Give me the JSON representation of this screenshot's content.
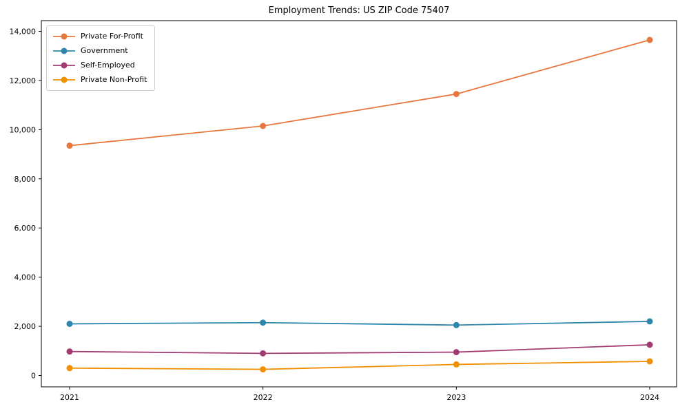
{
  "figure": {
    "background": "#ffffff",
    "border_color": "#000000",
    "legend_border_color": "#cccccc"
  },
  "chart_data": {
    "type": "line",
    "title": "Employment Trends: US ZIP Code 75407",
    "xlabel": "",
    "ylabel": "",
    "x_labels": [
      "2021",
      "2022",
      "2023",
      "2024"
    ],
    "series": [
      {
        "name": "Private For-Profit",
        "color": "#e8773e",
        "values": [
          9350,
          10150,
          11450,
          13650
        ]
      },
      {
        "name": "Government",
        "color": "#2e86ab",
        "values": [
          2100,
          2150,
          2050,
          2200
        ]
      },
      {
        "name": "Self-Employed",
        "color": "#a23b72",
        "values": [
          975,
          900,
          950,
          1250
        ]
      },
      {
        "name": "Private Non-Profit",
        "color": "#f18f01",
        "values": [
          300,
          250,
          450,
          575
        ]
      }
    ],
    "ylim": [
      0,
      14000
    ],
    "y_tick_values": [
      0,
      2000,
      4000,
      6000,
      8000,
      10000,
      12000,
      14000
    ],
    "y_tick_labels": [
      "0",
      "2,000",
      "4,000",
      "6,000",
      "8,000",
      "10,000",
      "12,000",
      "14,000"
    ],
    "grid": false,
    "legend_position": "upper-left",
    "marker": "circle"
  }
}
